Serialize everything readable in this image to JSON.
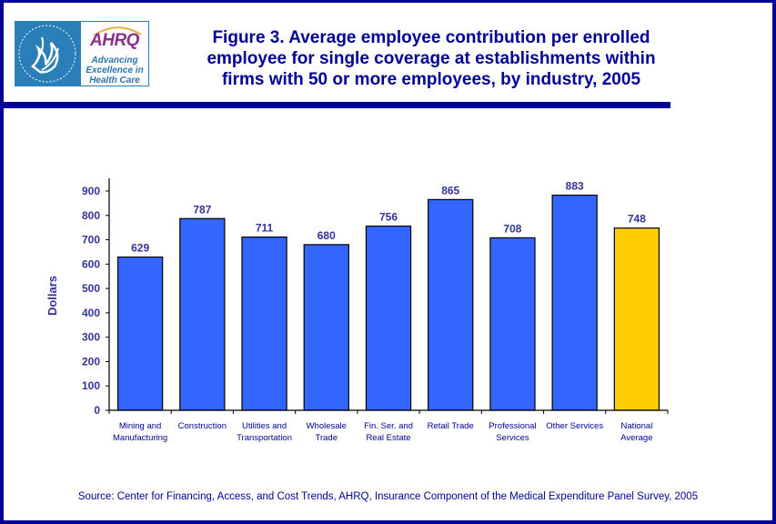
{
  "logo": {
    "hhs_label": "DEPARTMENT OF HEALTH & HUMAN SERVICES USA",
    "brand": "AHRQ",
    "tagline_lines": [
      "Advancing",
      "Excellence in",
      "Health Care"
    ]
  },
  "header": {
    "title_lines": [
      "Figure 3. Average employee contribution per enrolled",
      "employee for single coverage at establishments within",
      "firms with 50 or more employees, by industry, 2005"
    ]
  },
  "footer": {
    "source": "Source: Center for Financing, Access, and Cost Trends, AHRQ, Insurance Component of the Medical Expenditure Panel Survey, 2005"
  },
  "colors": {
    "border": "#000099",
    "bar": "#3366ff",
    "highlight_bar": "#ffcc00",
    "text": "#333399"
  },
  "chart_data": {
    "type": "bar",
    "title": "Figure 3. Average employee contribution per enrolled employee for single coverage at establishments within firms with 50 or more employees, by industry, 2005",
    "xlabel": "",
    "ylabel": "Dollars",
    "ylim": [
      0,
      900
    ],
    "yticks": [
      0,
      100,
      200,
      300,
      400,
      500,
      600,
      700,
      800,
      900
    ],
    "grid": false,
    "legend": "none",
    "categories": [
      [
        "Mining and",
        "Manufacturing"
      ],
      [
        "Construction"
      ],
      [
        "Utilities and",
        "Transportation"
      ],
      [
        "Wholesale",
        "Trade"
      ],
      [
        "Fin. Ser. and",
        "Real Estate"
      ],
      [
        "Retail Trade"
      ],
      [
        "Professional",
        "Services"
      ],
      [
        "Other Services"
      ],
      [
        "National",
        "Average"
      ]
    ],
    "values": [
      629,
      787,
      711,
      680,
      756,
      865,
      708,
      883,
      748
    ],
    "highlight_index": 8,
    "data_labels": [
      "629",
      "787",
      "711",
      "680",
      "756",
      "865",
      "708",
      "883",
      "748"
    ]
  }
}
